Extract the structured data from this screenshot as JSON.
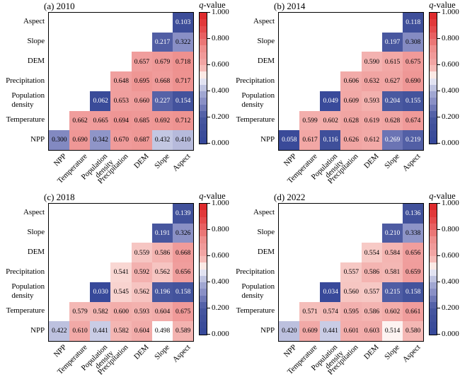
{
  "figure": {
    "background": "#ffffff",
    "text_white_below": 0.28,
    "colorbar": {
      "title_italic": "q",
      "title_rest": "-value",
      "tick_labels": [
        "1.000",
        "0.800",
        "0.600",
        "0.400",
        "0.200",
        "0.000"
      ],
      "min": 0,
      "max": 1,
      "steps": 20
    },
    "colormap": [
      [
        0.0,
        "#35479a"
      ],
      [
        0.1,
        "#3d4d99"
      ],
      [
        0.2,
        "#48579f"
      ],
      [
        0.27,
        "#6b74b4"
      ],
      [
        0.3,
        "#8289c1"
      ],
      [
        0.35,
        "#9197c9"
      ],
      [
        0.42,
        "#bcc0de"
      ],
      [
        0.47,
        "#dbdcee"
      ],
      [
        0.5,
        "#ffffff"
      ],
      [
        0.52,
        "#fceeeb"
      ],
      [
        0.55,
        "#f7cdc9"
      ],
      [
        0.58,
        "#f4b7b4"
      ],
      [
        0.61,
        "#f2a9a7"
      ],
      [
        0.66,
        "#f09d9c"
      ],
      [
        0.72,
        "#ee918f"
      ],
      [
        0.8,
        "#e86b6b"
      ],
      [
        0.9,
        "#e34041"
      ],
      [
        1.0,
        "#dc2426"
      ]
    ]
  },
  "chart_data": [
    {
      "type": "heatmap",
      "title": "(a) 2010",
      "colorbar_label": "q-value",
      "value_range": [
        0,
        1
      ],
      "x_categories": [
        "NPP",
        "Temperature",
        "Population\ndensity",
        "Precipitation",
        "DEM",
        "Slope",
        "Aspect"
      ],
      "y_categories": [
        "Aspect",
        "Slope",
        "DEM",
        "Precipitation",
        "Population\ndensity",
        "Temperature",
        "NPP"
      ],
      "matrix": [
        [
          null,
          null,
          null,
          null,
          null,
          null,
          0.103
        ],
        [
          null,
          null,
          null,
          null,
          null,
          0.217,
          0.322
        ],
        [
          null,
          null,
          null,
          null,
          0.657,
          0.679,
          0.718
        ],
        [
          null,
          null,
          null,
          0.648,
          0.695,
          0.668,
          0.717
        ],
        [
          null,
          null,
          0.062,
          0.653,
          0.66,
          0.227,
          0.154
        ],
        [
          null,
          0.662,
          0.665,
          0.694,
          0.685,
          0.692,
          0.712
        ],
        [
          0.3,
          0.69,
          0.342,
          0.67,
          0.687,
          0.432,
          0.41
        ]
      ]
    },
    {
      "type": "heatmap",
      "title": "(b) 2014",
      "colorbar_label": "q-value",
      "value_range": [
        0,
        1
      ],
      "x_categories": [
        "NPP",
        "Temperature",
        "Population\ndensity",
        "Precipitation",
        "DEM",
        "Slope",
        "Aspect"
      ],
      "y_categories": [
        "Aspect",
        "Slope",
        "DEM",
        "Precipitation",
        "Population\ndensity",
        "Temperature",
        "NPP"
      ],
      "matrix": [
        [
          null,
          null,
          null,
          null,
          null,
          null,
          0.118
        ],
        [
          null,
          null,
          null,
          null,
          null,
          0.197,
          0.308
        ],
        [
          null,
          null,
          null,
          null,
          0.59,
          0.615,
          0.675
        ],
        [
          null,
          null,
          null,
          0.606,
          0.632,
          0.627,
          0.69
        ],
        [
          null,
          null,
          0.049,
          0.609,
          0.593,
          0.204,
          0.155
        ],
        [
          null,
          0.599,
          0.602,
          0.628,
          0.619,
          0.628,
          0.674
        ],
        [
          0.058,
          0.617,
          0.116,
          0.626,
          0.612,
          0.269,
          0.219
        ]
      ]
    },
    {
      "type": "heatmap",
      "title": "(c) 2018",
      "colorbar_label": "q-value",
      "value_range": [
        0,
        1
      ],
      "x_categories": [
        "NPP",
        "Temperature",
        "Population\ndensity",
        "Precipitation",
        "DEM",
        "Slope",
        "Aspect"
      ],
      "y_categories": [
        "Aspect",
        "Slope",
        "DEM",
        "Precipitation",
        "Population\ndensity",
        "Temperature",
        "NPP"
      ],
      "matrix": [
        [
          null,
          null,
          null,
          null,
          null,
          null,
          0.139
        ],
        [
          null,
          null,
          null,
          null,
          null,
          0.191,
          0.326
        ],
        [
          null,
          null,
          null,
          null,
          0.559,
          0.586,
          0.668
        ],
        [
          null,
          null,
          null,
          0.541,
          0.592,
          0.562,
          0.656
        ],
        [
          null,
          null,
          0.03,
          0.545,
          0.562,
          0.196,
          0.158
        ],
        [
          null,
          0.579,
          0.582,
          0.6,
          0.593,
          0.604,
          0.675
        ],
        [
          0.422,
          0.61,
          0.441,
          0.582,
          0.604,
          0.498,
          0.589
        ]
      ]
    },
    {
      "type": "heatmap",
      "title": "(d) 2022",
      "colorbar_label": "q-value",
      "value_range": [
        0,
        1
      ],
      "x_categories": [
        "NPP",
        "Temperature",
        "Population\ndensity",
        "Precipitation",
        "DEM",
        "Slope",
        "Aspect"
      ],
      "y_categories": [
        "Aspect",
        "Slope",
        "DEM",
        "Precipitation",
        "Population\ndensity",
        "Temperature",
        "NPP"
      ],
      "matrix": [
        [
          null,
          null,
          null,
          null,
          null,
          null,
          0.136
        ],
        [
          null,
          null,
          null,
          null,
          null,
          0.21,
          0.338
        ],
        [
          null,
          null,
          null,
          null,
          0.554,
          0.584,
          0.656
        ],
        [
          null,
          null,
          null,
          0.557,
          0.586,
          0.581,
          0.659
        ],
        [
          null,
          null,
          0.034,
          0.56,
          0.557,
          0.215,
          0.158
        ],
        [
          null,
          0.571,
          0.574,
          0.595,
          0.586,
          0.602,
          0.661
        ],
        [
          0.42,
          0.609,
          0.441,
          0.601,
          0.603,
          0.514,
          0.58
        ]
      ]
    }
  ]
}
